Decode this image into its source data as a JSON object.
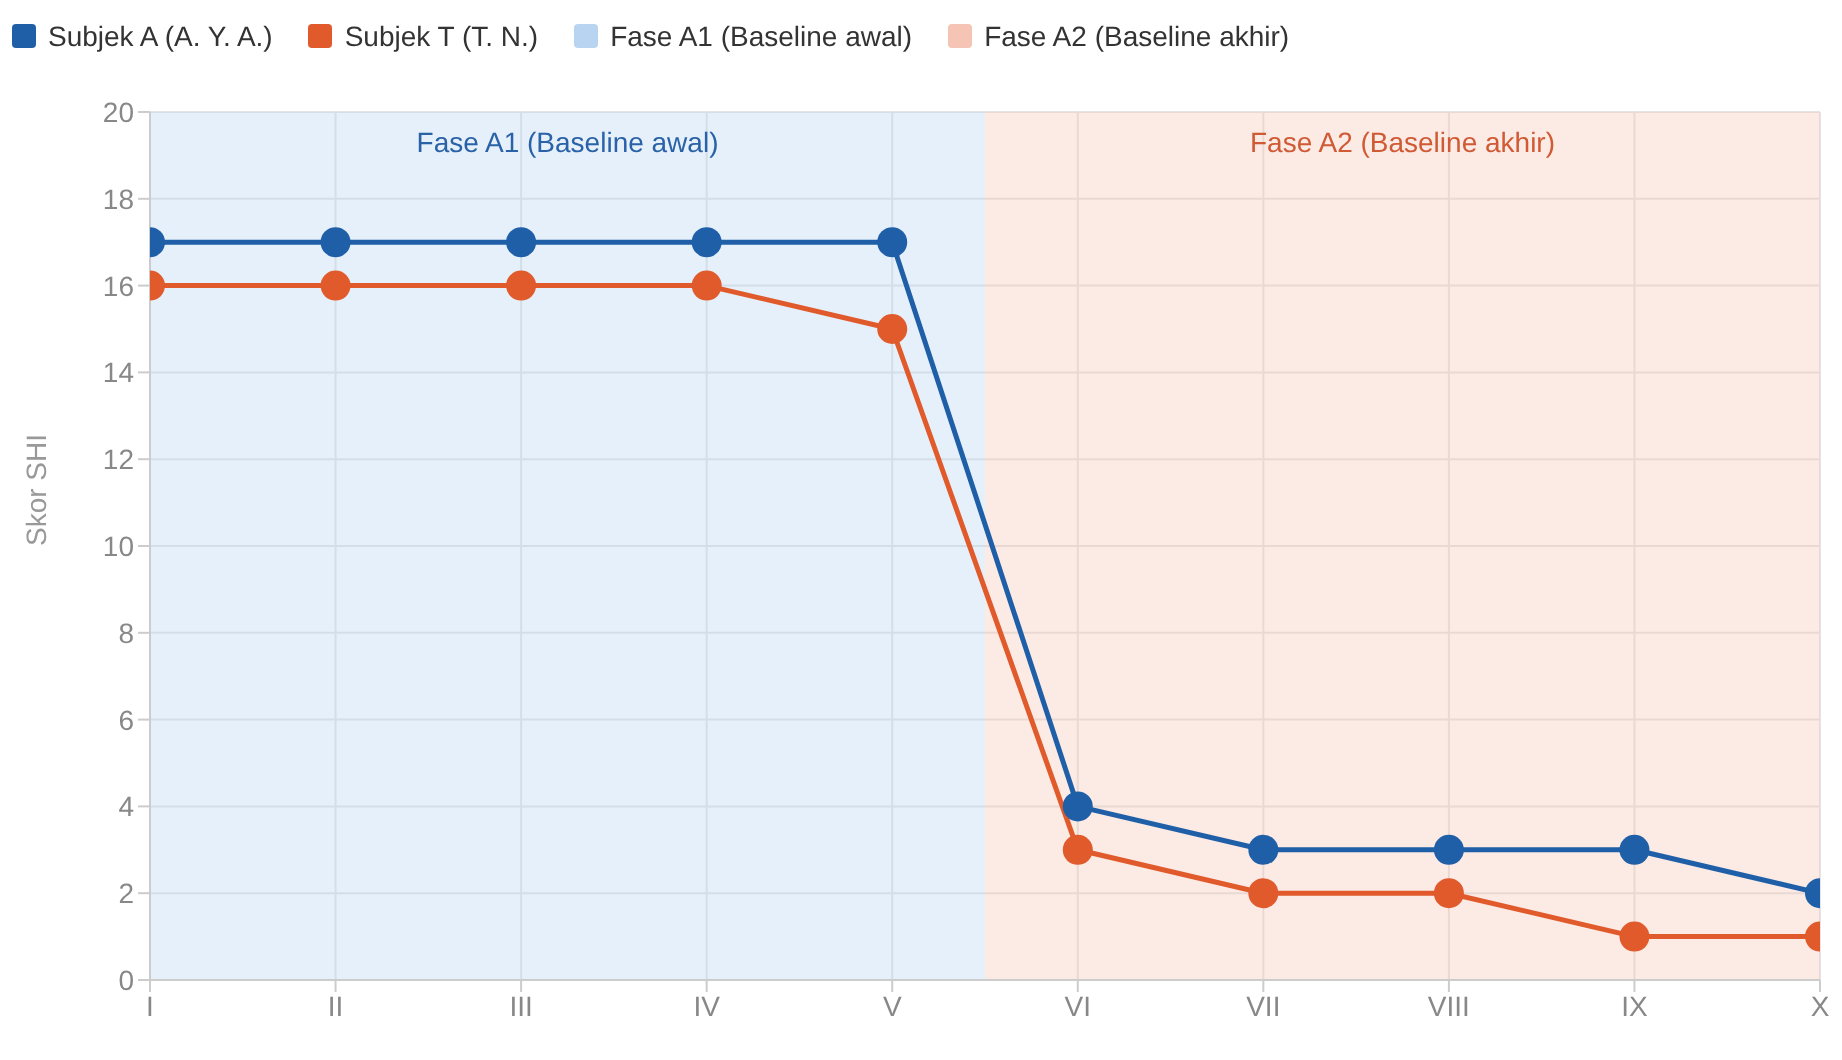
{
  "chart_data": {
    "type": "line",
    "ylabel": "Skor SHI",
    "categories": [
      "I",
      "II",
      "III",
      "IV",
      "V",
      "VI",
      "VII",
      "VIII",
      "IX",
      "X"
    ],
    "series": [
      {
        "name": "Subjek A (A. Y. A.)",
        "color": "#1f5fa8",
        "values": [
          17,
          17,
          17,
          17,
          17,
          4,
          3,
          3,
          3,
          2
        ]
      },
      {
        "name": "Subjek T (T. N.)",
        "color": "#e05a2b",
        "values": [
          16,
          16,
          16,
          16,
          15,
          3,
          2,
          2,
          1,
          1
        ]
      }
    ],
    "bands": [
      {
        "axis": "x",
        "from": "I",
        "to": "V",
        "label": "Fase A1 (Baseline awal)",
        "color": "#b8d4f0"
      },
      {
        "axis": "x",
        "from": "VI",
        "to": "X",
        "label": "Fase A2 (Baseline akhir)",
        "color": "#f5c4b4"
      }
    ],
    "ylim": [
      0,
      20
    ],
    "yticks": [
      0,
      2,
      4,
      6,
      8,
      10,
      12,
      14,
      16,
      18,
      20
    ],
    "grid": true,
    "legend": "top left",
    "marker": "circle",
    "line_style": "solid"
  }
}
